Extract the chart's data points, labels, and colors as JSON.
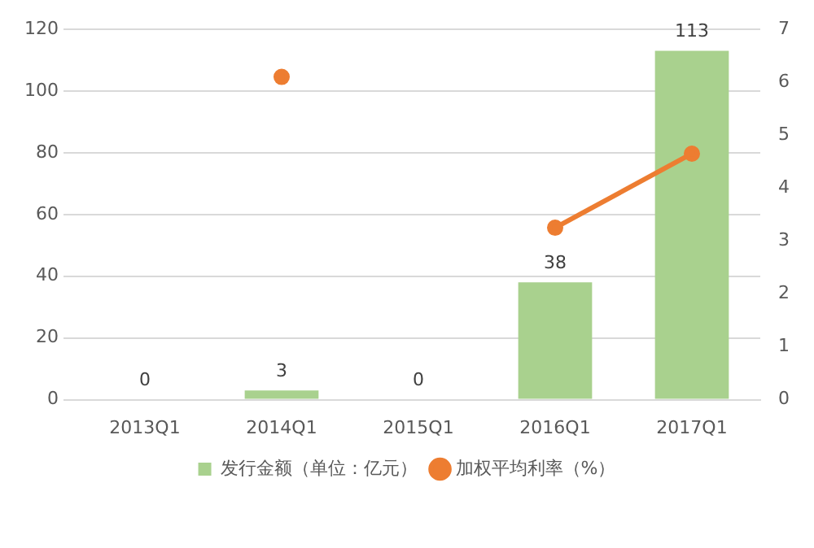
{
  "chart_data": {
    "type": "bar",
    "categories": [
      "2013Q1",
      "2014Q1",
      "2015Q1",
      "2016Q1",
      "2017Q1"
    ],
    "series": [
      {
        "name": "发行金额（单位：亿元）",
        "color": "#a9d18e",
        "values": [
          0,
          3,
          0,
          38,
          113
        ],
        "value_labels": [
          "0",
          "3",
          "0",
          "38",
          "113"
        ]
      },
      {
        "name": "加权平均利率（%）",
        "type": "line",
        "axis": "y2",
        "color": "#ed7d31",
        "values": [
          null,
          6.1,
          null,
          3.25,
          4.65
        ]
      }
    ],
    "ylim": [
      0,
      120
    ],
    "yticks": [
      0,
      20,
      40,
      60,
      80,
      100,
      120
    ],
    "y2lim": [
      0,
      7
    ],
    "y2ticks": [
      0,
      1,
      2,
      3,
      4,
      5,
      6,
      7
    ],
    "grid": "y",
    "legend": "bottom",
    "marker": "circle"
  }
}
